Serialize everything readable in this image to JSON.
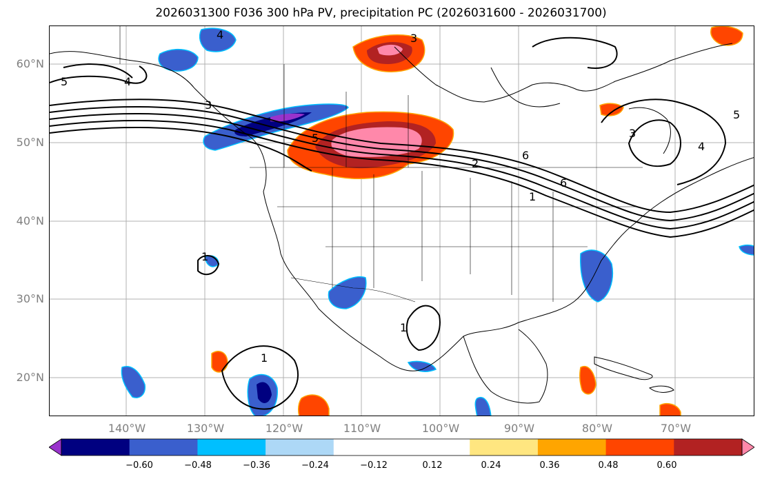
{
  "title": "2026031300 F036 300 hPa PV, precipitation PC (2026031600 - 2026031700)",
  "lat_labels": [
    "60°N",
    "50°N",
    "40°N",
    "30°N",
    "20°N"
  ],
  "lon_labels": [
    "140°W",
    "130°W",
    "120°W",
    "110°W",
    "100°W",
    "90°W",
    "80°W",
    "70°W"
  ],
  "contour_labels": [
    "5",
    "4",
    "4",
    "3",
    "3",
    "5",
    "6",
    "2",
    "1",
    "1",
    "1",
    "1",
    "6",
    "3",
    "5",
    "4"
  ],
  "colorbar": {
    "colors": [
      "#9933cc",
      "#000080",
      "#3a5fcd",
      "#00bfff",
      "#add8f6",
      "#ffffff",
      "#ffffff",
      "#ffe680",
      "#ffa500",
      "#ff4500",
      "#b22222",
      "#ff88aa"
    ],
    "ticks": [
      "−0.60",
      "−0.48",
      "−0.36",
      "−0.24",
      "−0.12",
      "0.12",
      "0.24",
      "0.36",
      "0.48",
      "0.60"
    ]
  },
  "colors": {
    "grid": "#b0b0b0",
    "contour": "#000000",
    "label": "#7f7f7f"
  }
}
